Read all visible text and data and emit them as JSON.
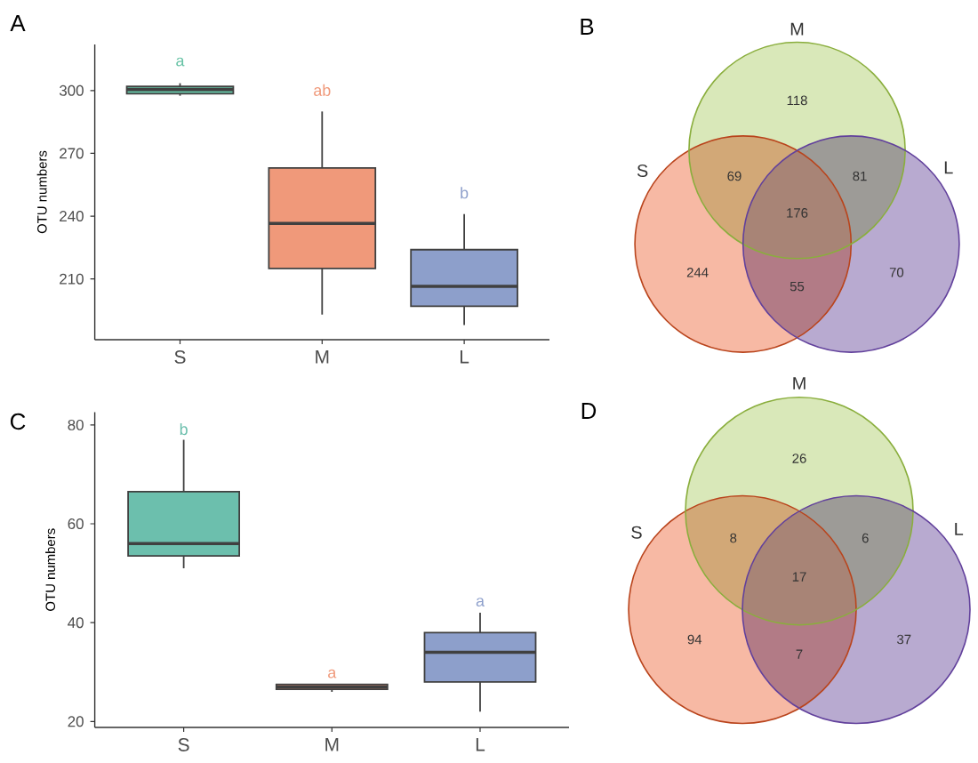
{
  "chart_data": [
    {
      "type": "box",
      "title": "A",
      "ylabel": "OTU numbers",
      "categories": [
        "S",
        "M",
        "L"
      ],
      "boxes": [
        {
          "low": 297.5,
          "q1": 298.5,
          "median": 300.5,
          "q3": 302,
          "high": 303.5
        },
        {
          "low": 193,
          "q1": 215,
          "median": 236.5,
          "q3": 263,
          "high": 290
        },
        {
          "low": 188,
          "q1": 197,
          "median": 206.5,
          "q3": 224,
          "high": 241
        }
      ],
      "colors": [
        "#66c2a5",
        "#f0997a",
        "#8d9fcb"
      ],
      "ylim": [
        181,
        322
      ],
      "yticks": [
        210,
        240,
        270,
        300
      ],
      "annotations": [
        "a",
        "ab",
        "b"
      ]
    },
    {
      "type": "other",
      "title": "B",
      "categories": [
        "S",
        "M",
        "L"
      ],
      "colors": [
        "#f7b9a4",
        "#d9e8b9",
        "#b8aad0"
      ],
      "annotations": [
        "244",
        "118",
        "70",
        "69",
        "55",
        "81",
        "176"
      ]
    },
    {
      "type": "box",
      "title": "C",
      "ylabel": "OTU numbers",
      "categories": [
        "S",
        "M",
        "L"
      ],
      "boxes": [
        {
          "low": 51,
          "q1": 53.5,
          "median": 56,
          "q3": 66.5,
          "high": 77
        },
        {
          "low": 26,
          "q1": 26.5,
          "median": 27,
          "q3": 27.5,
          "high": 27.5
        },
        {
          "low": 22,
          "q1": 28,
          "median": 34,
          "q3": 38,
          "high": 42
        }
      ],
      "colors": [
        "#6cbfad",
        "#f0997a",
        "#8d9fcb"
      ],
      "ylim": [
        18.8,
        82.6
      ],
      "yticks": [
        20,
        40,
        60,
        80
      ],
      "annotations": [
        "b",
        "a",
        "a"
      ]
    },
    {
      "type": "other",
      "title": "D",
      "categories": [
        "S",
        "M",
        "L"
      ],
      "colors": [
        "#f7b9a4",
        "#d9e8b9",
        "#b8aad0"
      ],
      "annotations": [
        "94",
        "26",
        "37",
        "8",
        "7",
        "6",
        "17"
      ]
    }
  ]
}
